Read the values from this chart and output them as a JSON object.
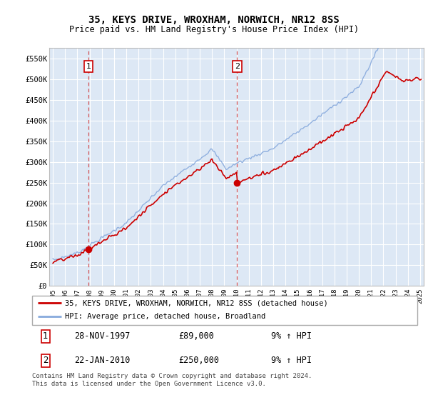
{
  "title": "35, KEYS DRIVE, WROXHAM, NORWICH, NR12 8SS",
  "subtitle": "Price paid vs. HM Land Registry's House Price Index (HPI)",
  "ylim": [
    0,
    575000
  ],
  "yticks": [
    0,
    50000,
    100000,
    150000,
    200000,
    250000,
    300000,
    350000,
    400000,
    450000,
    500000,
    550000
  ],
  "ytick_labels": [
    "£0",
    "£50K",
    "£100K",
    "£150K",
    "£200K",
    "£250K",
    "£300K",
    "£350K",
    "£400K",
    "£450K",
    "£500K",
    "£550K"
  ],
  "sale1_date": 1997.917,
  "sale1_price": 89000,
  "sale2_date": 2010.05,
  "sale2_price": 250000,
  "line_color_property": "#cc0000",
  "line_color_hpi": "#88aadd",
  "bg_color": "#dde8f5",
  "grid_color": "#ffffff",
  "legend_line1": "35, KEYS DRIVE, WROXHAM, NORWICH, NR12 8SS (detached house)",
  "legend_line2": "HPI: Average price, detached house, Broadland",
  "footnote1": "Contains HM Land Registry data © Crown copyright and database right 2024.",
  "footnote2": "This data is licensed under the Open Government Licence v3.0.",
  "table_row1": [
    "1",
    "28-NOV-1997",
    "£89,000",
    "9% ↑ HPI"
  ],
  "table_row2": [
    "2",
    "22-JAN-2010",
    "£250,000",
    "9% ↑ HPI"
  ]
}
